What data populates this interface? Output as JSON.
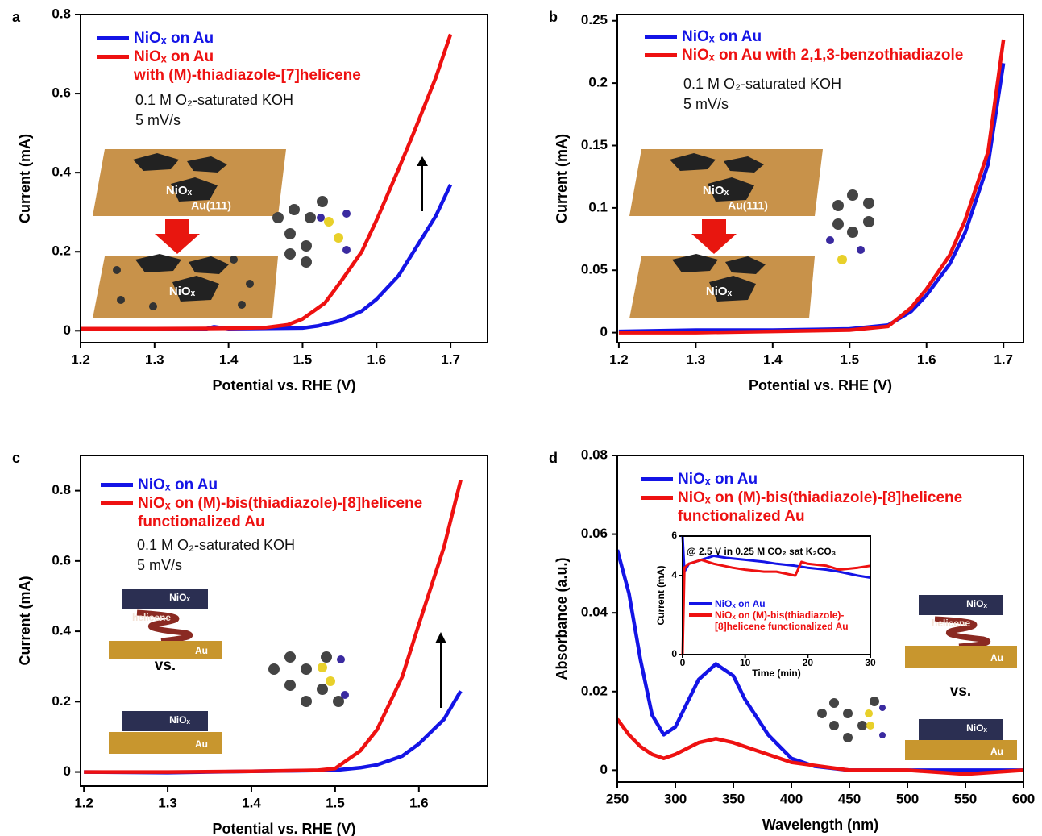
{
  "chart_data": [
    {
      "type": "line",
      "panel": "a",
      "xlabel": "Potential vs. RHE (V)",
      "ylabel": "Current (mA)",
      "xlim": [
        1.2,
        1.75
      ],
      "ylim": [
        -0.03,
        0.8
      ],
      "xticks": [
        1.2,
        1.3,
        1.4,
        1.5,
        1.6,
        1.7
      ],
      "yticks": [
        0,
        0.2,
        0.4,
        0.6,
        0.8
      ],
      "series": [
        {
          "name": "NiOₓ on Au",
          "color": "#1414e6",
          "x": [
            1.2,
            1.3,
            1.37,
            1.38,
            1.4,
            1.5,
            1.52,
            1.55,
            1.58,
            1.6,
            1.63,
            1.65,
            1.68,
            1.7
          ],
          "values": [
            0.003,
            0.004,
            0.005,
            0.01,
            0.005,
            0.007,
            0.012,
            0.025,
            0.05,
            0.08,
            0.14,
            0.2,
            0.29,
            0.37
          ]
        },
        {
          "name": "NiOₓ on Au\nwith (M)-thiadiazole-[7]helicene",
          "color": "#ee1111",
          "x": [
            1.2,
            1.3,
            1.4,
            1.45,
            1.48,
            1.5,
            1.53,
            1.55,
            1.58,
            1.6,
            1.63,
            1.65,
            1.68,
            1.7
          ],
          "values": [
            0.005,
            0.005,
            0.006,
            0.008,
            0.015,
            0.03,
            0.07,
            0.12,
            0.2,
            0.28,
            0.41,
            0.5,
            0.64,
            0.75
          ]
        }
      ],
      "annotations": [
        "0.1 M O₂-saturated KOH",
        "5 mV/s"
      ],
      "diagram_labels": [
        "NiOₓ",
        "Au(111)",
        "NiOₓ"
      ]
    },
    {
      "type": "line",
      "panel": "b",
      "xlabel": "Potential vs. RHE (V)",
      "ylabel": "Current (mA)",
      "xlim": [
        1.198,
        1.726
      ],
      "ylim": [
        -0.008,
        0.255
      ],
      "xticks": [
        1.2,
        1.3,
        1.4,
        1.5,
        1.6,
        1.7
      ],
      "yticks": [
        0,
        0.05,
        0.1,
        0.15,
        0.2,
        0.25
      ],
      "series": [
        {
          "name": "NiOₓ on Au",
          "color": "#1414e6",
          "x": [
            1.2,
            1.3,
            1.4,
            1.5,
            1.55,
            1.58,
            1.6,
            1.63,
            1.65,
            1.68,
            1.7
          ],
          "values": [
            0.001,
            0.002,
            0.002,
            0.003,
            0.006,
            0.017,
            0.03,
            0.055,
            0.08,
            0.135,
            0.216
          ]
        },
        {
          "name": "NiOₓ on Au with 2,1,3-benzothiadiazole",
          "color": "#ee1111",
          "x": [
            1.2,
            1.3,
            1.4,
            1.5,
            1.55,
            1.58,
            1.6,
            1.63,
            1.65,
            1.68,
            1.7
          ],
          "values": [
            0.0,
            0.0,
            0.001,
            0.002,
            0.005,
            0.02,
            0.035,
            0.062,
            0.09,
            0.145,
            0.235
          ]
        }
      ],
      "annotations": [
        "0.1 M O₂-saturated KOH",
        "5 mV/s"
      ],
      "diagram_labels": [
        "NiOₓ",
        "Au(111)",
        "NiOₓ"
      ]
    },
    {
      "type": "line",
      "panel": "c",
      "xlabel": "Potential vs. RHE (V)",
      "ylabel": "Current (mA)",
      "xlim": [
        1.196,
        1.682
      ],
      "ylim": [
        -0.04,
        0.9
      ],
      "xticks": [
        1.2,
        1.3,
        1.4,
        1.5,
        1.6
      ],
      "yticks": [
        0,
        0.2,
        0.4,
        0.6,
        0.8
      ],
      "series": [
        {
          "name": "NiOₓ on Au",
          "color": "#1414e6",
          "x": [
            1.2,
            1.3,
            1.4,
            1.5,
            1.53,
            1.55,
            1.58,
            1.6,
            1.63,
            1.65
          ],
          "values": [
            0.0,
            -0.002,
            0.002,
            0.005,
            0.012,
            0.02,
            0.045,
            0.08,
            0.15,
            0.23
          ]
        },
        {
          "name": "NiOₓ on (M)-bis(thiadiazole)-[8]helicene\nfunctionalized Au",
          "color": "#ee1111",
          "x": [
            1.2,
            1.3,
            1.4,
            1.48,
            1.5,
            1.53,
            1.55,
            1.58,
            1.6,
            1.63,
            1.65
          ],
          "values": [
            0.0,
            0.0,
            0.002,
            0.005,
            0.01,
            0.06,
            0.12,
            0.27,
            0.42,
            0.64,
            0.83
          ]
        }
      ],
      "annotations": [
        "0.1 M O₂-saturated KOH",
        "5 mV/s"
      ],
      "diagram_labels": [
        "NiOₓ",
        "helicene",
        "Au",
        "vs.",
        "NiOₓ",
        "Au"
      ]
    },
    {
      "type": "line",
      "panel": "d",
      "xlabel": "Wavelength (nm)",
      "ylabel": "Absorbance (a.u.)",
      "xlim": [
        250,
        600
      ],
      "ylim": [
        -0.003,
        0.08
      ],
      "xticks": [
        250,
        300,
        350,
        400,
        450,
        500,
        550,
        600
      ],
      "yticks": [
        0,
        0.02,
        0.04,
        0.06,
        0.08
      ],
      "series": [
        {
          "name": "NiOₓ on Au",
          "color": "#1414e6",
          "x": [
            250,
            260,
            270,
            280,
            290,
            300,
            310,
            320,
            335,
            350,
            360,
            380,
            400,
            420,
            450,
            500,
            550,
            600
          ],
          "values": [
            0.056,
            0.045,
            0.028,
            0.014,
            0.009,
            0.011,
            0.017,
            0.023,
            0.027,
            0.024,
            0.018,
            0.009,
            0.003,
            0.001,
            0.0,
            0.0,
            0.0,
            0.0
          ]
        },
        {
          "name": "NiOₓ on (M)-bis(thiadiazole)-[8]helicene\nfunctionalized Au",
          "color": "#ee1111",
          "x": [
            250,
            260,
            270,
            280,
            290,
            300,
            320,
            335,
            350,
            370,
            400,
            450,
            500,
            550,
            600
          ],
          "values": [
            0.013,
            0.009,
            0.006,
            0.004,
            0.003,
            0.004,
            0.007,
            0.008,
            0.007,
            0.005,
            0.002,
            0.0,
            0.0,
            -0.001,
            0.0
          ]
        }
      ],
      "diagram_labels": [
        "NiOₓ",
        "helicene",
        "Au",
        "vs.",
        "NiOₓ",
        "Au"
      ]
    },
    {
      "type": "line",
      "title": "@ 2.5 V in 0.25 M CO₂ sat K₂CO₃",
      "xlabel": "Time (min)",
      "ylabel": "Current (mA)",
      "xlim": [
        0,
        30
      ],
      "ylim": [
        0,
        6
      ],
      "xticks": [
        0,
        10,
        20,
        30
      ],
      "yticks": [
        0,
        4,
        6
      ],
      "series": [
        {
          "name": "NiOₓ on Au",
          "color": "#1414e6",
          "x": [
            0,
            0.3,
            1,
            2,
            3,
            5,
            7,
            10,
            13,
            15,
            18,
            20,
            23,
            25,
            28,
            30
          ],
          "values": [
            6,
            4.2,
            4.6,
            4.7,
            4.8,
            5.0,
            4.9,
            4.8,
            4.7,
            4.6,
            4.5,
            4.4,
            4.3,
            4.2,
            4.0,
            3.9
          ]
        },
        {
          "name": "NiOₓ on (M)-bis(thiadiazole)-[8]helicene functionalized Au",
          "color": "#ee1111",
          "x": [
            0,
            0.3,
            1,
            3,
            5,
            8,
            10,
            13,
            15,
            18,
            19,
            20,
            23,
            25,
            28,
            30
          ],
          "values": [
            0,
            4.4,
            4.6,
            4.8,
            4.6,
            4.4,
            4.3,
            4.2,
            4.2,
            4.0,
            4.7,
            4.6,
            4.5,
            4.3,
            4.4,
            4.5
          ]
        }
      ]
    }
  ]
}
